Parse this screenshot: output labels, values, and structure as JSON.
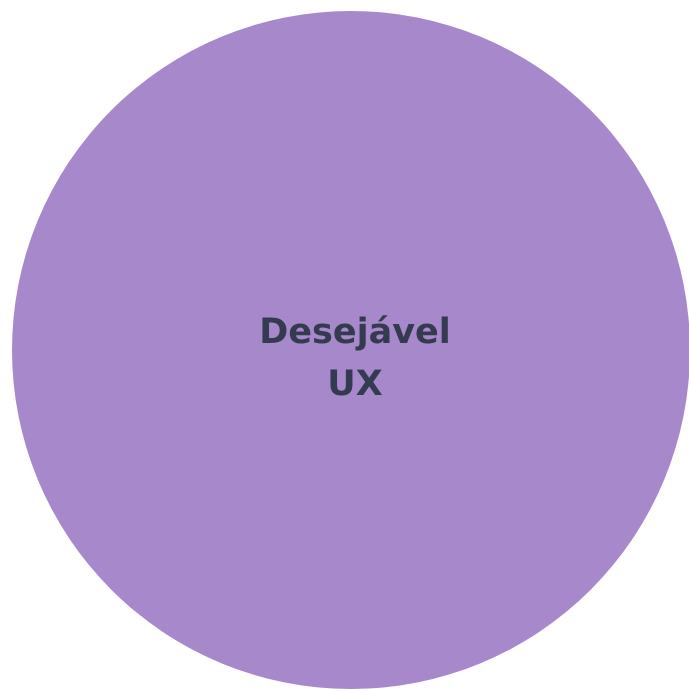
{
  "nodes": [
    {
      "label": [
        "Desejável",
        "UX"
      ]
    }
  ]
}
